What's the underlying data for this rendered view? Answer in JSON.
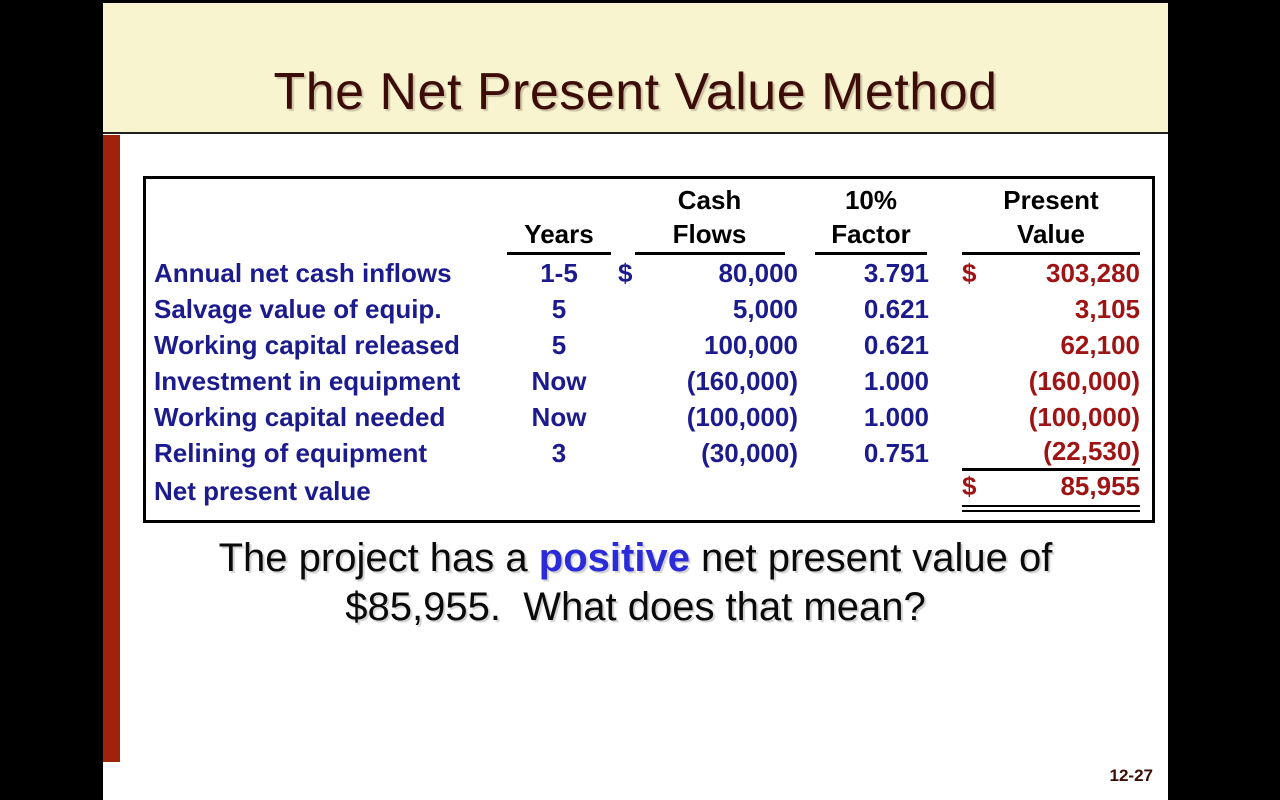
{
  "slide": {
    "title": "The Net Present Value Method",
    "page_number": "12-27",
    "colors": {
      "header_band": "#F7F4CF",
      "accent_bar": "#A0220A",
      "title_text": "#3C0D08",
      "table_text_blue": "#1B1B8E",
      "present_value_red": "#9E1414",
      "highlight_blue": "#2B2BD9",
      "border_black": "#000000"
    },
    "table": {
      "headers": {
        "years": "Years",
        "cash_line1": "Cash",
        "cash_line2": "Flows",
        "factor_line1": "10%",
        "factor_line2": "Factor",
        "value_line1": "Present",
        "value_line2": "Value"
      },
      "rows": [
        {
          "label": "Annual net cash inflows",
          "years": "1-5",
          "cash_dollar": "$",
          "cash": "80,000",
          "factor": "3.791",
          "pv_dollar": "$",
          "pv": "303,280"
        },
        {
          "label": "Salvage value of equip.",
          "years": "5",
          "cash_dollar": "",
          "cash": "5,000",
          "factor": "0.621",
          "pv_dollar": "",
          "pv": "3,105"
        },
        {
          "label": "Working capital released",
          "years": "5",
          "cash_dollar": "",
          "cash": "100,000",
          "factor": "0.621",
          "pv_dollar": "",
          "pv": "62,100"
        },
        {
          "label": "Investment in equipment",
          "years": "Now",
          "cash_dollar": "",
          "cash": "(160,000)",
          "factor": "1.000",
          "pv_dollar": "",
          "pv": "(160,000)"
        },
        {
          "label": "Working capital needed",
          "years": "Now",
          "cash_dollar": "",
          "cash": "(100,000)",
          "factor": "1.000",
          "pv_dollar": "",
          "pv": "(100,000)"
        },
        {
          "label": "Relining of equipment",
          "years": "3",
          "cash_dollar": "",
          "cash": "(30,000)",
          "factor": "0.751",
          "pv_dollar": "",
          "pv": "(22,530)"
        },
        {
          "label": "Net present value",
          "years": "",
          "cash_dollar": "",
          "cash": "",
          "factor": "",
          "pv_dollar": "$",
          "pv": "85,955"
        }
      ]
    },
    "body": {
      "line1_pre": "The project has a ",
      "line1_highlight": "positive",
      "line1_post": " net present value of",
      "line2": "$85,955.  What does that mean?"
    }
  },
  "chart_data": {
    "type": "table",
    "title": "The Net Present Value Method",
    "columns": [
      "Item",
      "Years",
      "Cash Flows",
      "10% Factor",
      "Present Value"
    ],
    "rows": [
      [
        "Annual net cash inflows",
        "1-5",
        80000,
        3.791,
        303280
      ],
      [
        "Salvage value of equip.",
        "5",
        5000,
        0.621,
        3105
      ],
      [
        "Working capital released",
        "5",
        100000,
        0.621,
        62100
      ],
      [
        "Investment in equipment",
        "Now",
        -160000,
        1.0,
        -160000
      ],
      [
        "Working capital needed",
        "Now",
        -100000,
        1.0,
        -100000
      ],
      [
        "Relining of equipment",
        "3",
        -30000,
        0.751,
        -22530
      ],
      [
        "Net present value",
        "",
        null,
        null,
        85955
      ]
    ]
  }
}
